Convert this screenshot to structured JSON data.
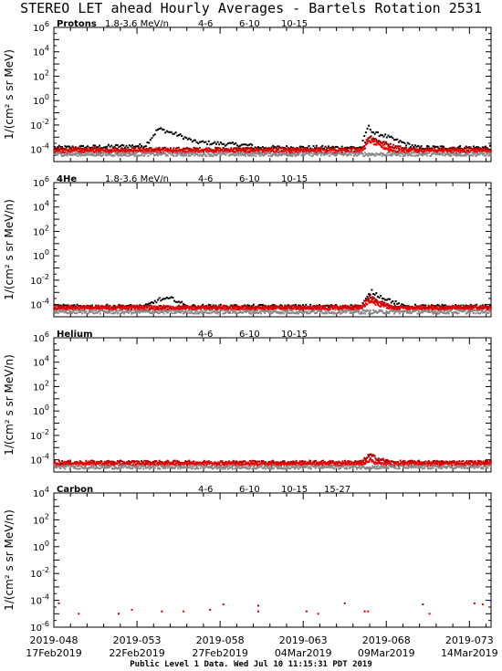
{
  "title": "STEREO LET ahead Hourly Averages - Bartels Rotation 2531",
  "footer": "Public Level 1 Data. Wed Jul 10 11:15:31 PDT 2019",
  "ylabel_protons": "1/(cm² s sr MeV)",
  "ylabel_other": "1/(cm² s sr MeV/n)",
  "colors": {
    "e1": "#000000",
    "e2": "#aa0000",
    "e3": "#ee0000",
    "e4": "#888888",
    "e5": "#0000ee"
  },
  "chart_data": [
    {
      "type": "scatter",
      "species": "Protons",
      "legend": [
        "1.8-3.6 MeV/n",
        "4-6",
        "6-10",
        "10-15"
      ],
      "ylog": true,
      "ylim": [
        1e-05,
        1000000.0
      ],
      "yticks": [
        1000000.0,
        10000.0,
        100.0,
        1.0,
        0.01,
        0.0001
      ],
      "xlim": [
        48,
        74.3
      ],
      "features": [
        {
          "series": "1.8-3.6 MeV/n",
          "bg": 0.00014,
          "events": [
            {
              "x": [
                49.0,
                53.5,
                54.3,
                55.5,
                56.5,
                58.0,
                60.0
              ],
              "y": [
                0.00014,
                0.0002,
                0.005,
                0.0015,
                0.0004,
                0.0003,
                0.0002
              ]
            },
            {
              "x": [
                66.5,
                66.9,
                67.3,
                67.8,
                68.5,
                69.3,
                69.8
              ],
              "y": [
                0.00016,
                0.008,
                0.002,
                0.0015,
                0.0006,
                0.00025,
                0.00016
              ]
            }
          ]
        },
        {
          "series": "4-6",
          "bg": 0.0001,
          "events": [
            {
              "x": [
                66.5,
                67.0,
                67.5,
                68.3,
                69.3
              ],
              "y": [
                0.0001,
                0.0012,
                0.0005,
                0.0002,
                0.0001
              ]
            }
          ]
        },
        {
          "series": "6-10",
          "bg": 7e-05,
          "events": [
            {
              "x": [
                66.5,
                67.0,
                67.6,
                68.5
              ],
              "y": [
                7e-05,
                0.0005,
                0.0002,
                7e-05
              ]
            }
          ]
        },
        {
          "series": "10-15",
          "bg": 4e-05,
          "events": []
        }
      ]
    },
    {
      "type": "scatter",
      "species": "4He",
      "legend": [
        "1.8-3.6 MeV/n",
        "4-6",
        "6-10",
        "10-15"
      ],
      "ylog": true,
      "ylim": [
        1e-05,
        1000000.0
      ],
      "yticks": [
        1000000.0,
        10000.0,
        100.0,
        1.0,
        0.01,
        0.0001
      ],
      "xlim": [
        48,
        74.3
      ],
      "features": [
        {
          "series": "1.8-3.6 MeV/n",
          "bg": 7e-05,
          "events": [
            {
              "x": [
                53.5,
                54.3,
                55.2,
                56.0
              ],
              "y": [
                7e-05,
                0.00025,
                0.0003,
                7e-05
              ]
            },
            {
              "x": [
                66.5,
                67.1,
                67.6,
                68.3,
                69.0
              ],
              "y": [
                7e-05,
                0.0012,
                0.0005,
                0.0002,
                7e-05
              ]
            }
          ]
        },
        {
          "series": "4-6",
          "bg": 6e-05,
          "events": [
            {
              "x": [
                66.5,
                67.0,
                67.6,
                68.4
              ],
              "y": [
                6e-05,
                0.0004,
                0.00015,
                6e-05
              ]
            }
          ]
        },
        {
          "series": "6-10",
          "bg": 5e-05,
          "events": [
            {
              "x": [
                66.5,
                67.0,
                67.6,
                68.4
              ],
              "y": [
                5e-05,
                0.0002,
                0.0001,
                5e-05
              ]
            }
          ]
        },
        {
          "series": "10-15",
          "bg": 2.5e-05,
          "events": []
        }
      ]
    },
    {
      "type": "scatter",
      "species": "Helium",
      "legend": [
        "4-6",
        "6-10",
        "10-15"
      ],
      "ylog": true,
      "ylim": [
        1e-05,
        1000000.0
      ],
      "yticks": [
        1000000.0,
        10000.0,
        100.0,
        1.0,
        0.01,
        0.0001
      ],
      "xlim": [
        48,
        74.3
      ],
      "features": [
        {
          "series": "4-6",
          "bg": 6e-05,
          "events": [
            {
              "x": [
                66.5,
                67.0,
                67.5,
                68.3
              ],
              "y": [
                6e-05,
                0.00025,
                0.00012,
                6e-05
              ]
            }
          ]
        },
        {
          "series": "6-10",
          "bg": 4.5e-05,
          "events": [
            {
              "x": [
                66.5,
                67.0,
                67.6
              ],
              "y": [
                4.5e-05,
                0.0001,
                4.5e-05
              ]
            }
          ]
        },
        {
          "series": "10-15",
          "bg": 2.5e-05,
          "events": []
        }
      ]
    },
    {
      "type": "scatter",
      "species": "Carbon",
      "legend": [
        "4-6",
        "6-10",
        "10-15",
        "15-27"
      ],
      "ylog": true,
      "ylim": [
        1e-06,
        10000.0
      ],
      "yticks": [
        10000.0,
        100.0,
        1.0,
        0.01,
        0.0001,
        1e-06
      ],
      "xlim": [
        48,
        74.3
      ],
      "points": [
        {
          "series": "4-6",
          "x": [
            48.3,
            51.9,
            54.5,
            57.4,
            60.3,
            63.2,
            65.5,
            66.7,
            70.2,
            73.3
          ],
          "y": [
            6e-05,
            1e-05,
            1.5e-05,
            2e-05,
            4e-05,
            1.5e-05,
            6e-05,
            1.5e-05,
            5e-05,
            6e-05
          ]
        },
        {
          "series": "6-10",
          "x": [
            49.5,
            52.7,
            55.8,
            58.2,
            60.3,
            63.9,
            66.9,
            70.6,
            73.8
          ],
          "y": [
            1e-05,
            2e-05,
            1.5e-05,
            5e-05,
            1.5e-05,
            1e-05,
            1.5e-05,
            1e-05,
            5e-05
          ]
        }
      ]
    }
  ],
  "x_axis": {
    "ticks": [
      {
        "x": 48,
        "doy": "2019-048",
        "date": "17Feb2019"
      },
      {
        "x": 53,
        "doy": "2019-053",
        "date": "22Feb2019"
      },
      {
        "x": 58,
        "doy": "2019-058",
        "date": "27Feb2019"
      },
      {
        "x": 63,
        "doy": "2019-063",
        "date": "04Mar2019"
      },
      {
        "x": 68,
        "doy": "2019-068",
        "date": "09Mar2019"
      },
      {
        "x": 73,
        "doy": "2019-073",
        "date": "14Mar2019"
      }
    ]
  }
}
